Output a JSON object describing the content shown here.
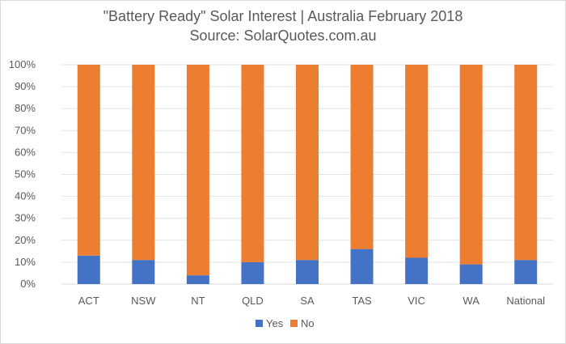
{
  "chart_data": {
    "type": "bar",
    "stacked": true,
    "title": "\"Battery Ready\" Solar Interest | Australia February 2018",
    "subtitle": "Source: SolarQuotes.com.au",
    "categories": [
      "ACT",
      "NSW",
      "NT",
      "QLD",
      "SA",
      "TAS",
      "VIC",
      "WA",
      "National"
    ],
    "series": [
      {
        "name": "Yes",
        "color": "#4472c4",
        "values": [
          13,
          11,
          4,
          10,
          11,
          16,
          12,
          9,
          11
        ]
      },
      {
        "name": "No",
        "color": "#ed7d31",
        "values": [
          87,
          89,
          96,
          90,
          89,
          84,
          88,
          91,
          89
        ]
      }
    ],
    "y_ticks": [
      "0%",
      "10%",
      "20%",
      "30%",
      "40%",
      "50%",
      "60%",
      "70%",
      "80%",
      "90%",
      "100%"
    ],
    "ylim": [
      0,
      100
    ],
    "grid": true,
    "legend": "bottom"
  }
}
